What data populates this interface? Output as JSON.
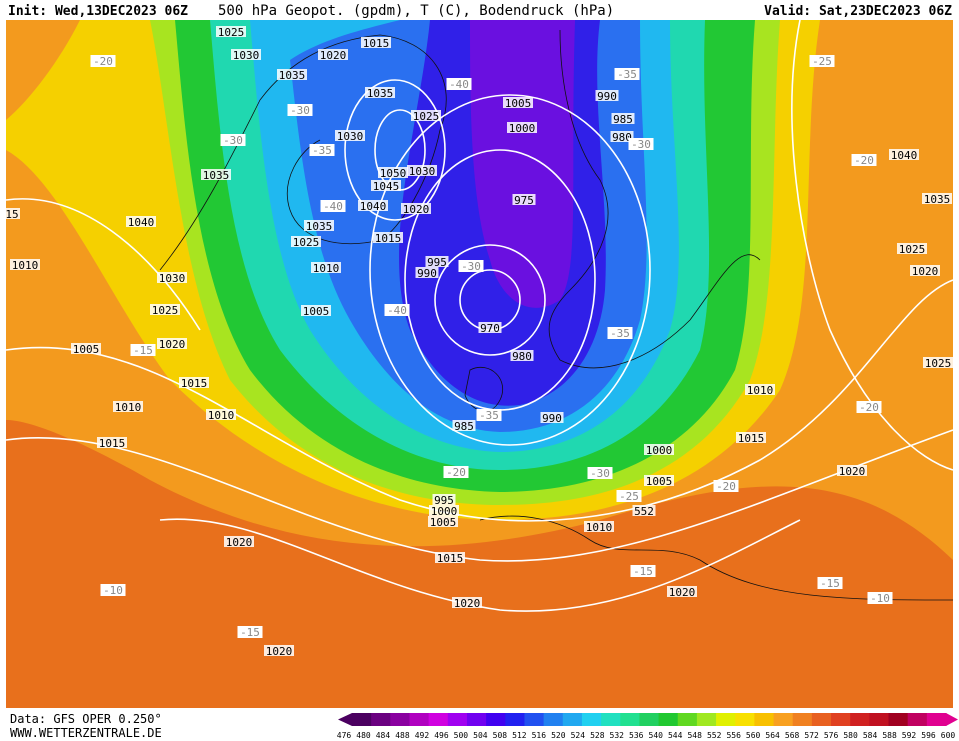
{
  "header": {
    "init": "Init: Wed,13DEC2023 06Z",
    "title": "500 hPa Geopot. (gpdm), T (C), Bodendruck (hPa)",
    "valid": "Valid: Sat,23DEC2023 06Z"
  },
  "footer": {
    "source": "Data: GFS OPER 0.250°",
    "site": "WWW.WETTERZENTRALE.DE"
  },
  "legend": {
    "labels": [
      476,
      480,
      484,
      488,
      492,
      496,
      500,
      504,
      508,
      512,
      516,
      520,
      524,
      528,
      532,
      536,
      540,
      544,
      548,
      552,
      556,
      560,
      564,
      568,
      572,
      576,
      580,
      584,
      588,
      592,
      596,
      600
    ],
    "colors": [
      "#4b0060",
      "#6a0080",
      "#8a00a0",
      "#b000c0",
      "#d000e0",
      "#a000f0",
      "#7000f0",
      "#4000f0",
      "#2020f0",
      "#2050f0",
      "#2080f0",
      "#20a8f0",
      "#20d0f0",
      "#20e0c0",
      "#20e090",
      "#20d060",
      "#20c830",
      "#60d820",
      "#a0e820",
      "#e0f000",
      "#f8e000",
      "#f8c000",
      "#f8a020",
      "#f08020",
      "#e86020",
      "#e04020",
      "#d02020",
      "#c01020",
      "#a00020",
      "#c00060",
      "#e00090"
    ]
  },
  "isobar_labels": [
    "1025",
    "1030",
    "1035",
    "1020",
    "1015",
    "1035",
    "1025",
    "1030",
    "1050",
    "1030",
    "1045",
    "1040",
    "1020",
    "1035",
    "1025",
    "1015",
    "1010",
    "995",
    "990",
    "1005",
    "1005",
    "1000",
    "990",
    "985",
    "980",
    "975",
    "970",
    "980",
    "990",
    "985",
    "1035",
    "1040",
    "1010",
    "1030",
    "1025",
    "1020",
    "1005",
    "1015",
    "1010",
    "1010",
    "1015",
    "1040",
    "1035",
    "1025",
    "1020",
    "1025",
    "1010",
    "1015",
    "1020",
    "1000",
    "1005",
    "995",
    "1000",
    "1005",
    "1010",
    "1020",
    "1015",
    "1020",
    "1020",
    "1020",
    "15",
    "552"
  ],
  "temperature_labels": [
    "-20",
    "-30",
    "-30",
    "-35",
    "-40",
    "-40",
    "-35",
    "-30",
    "-25",
    "-20",
    "-30",
    "-40",
    "-35",
    "-15",
    "-35",
    "-20",
    "-30",
    "-25",
    "-20",
    "-20",
    "-15",
    "-15",
    "-10",
    "-10",
    "-15"
  ]
}
